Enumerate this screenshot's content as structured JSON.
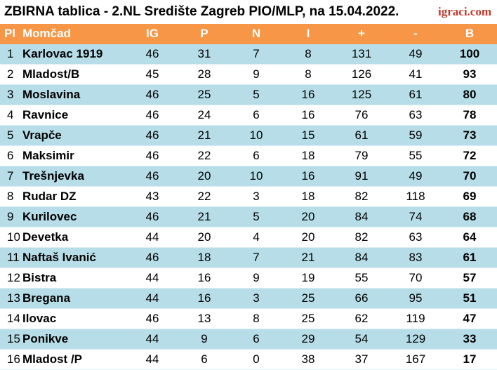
{
  "header": {
    "title": "ZBIRNA tablica - 2.NL Središte Zagreb PIO/MLP, na 15.04.2022.",
    "logo": "igraci.com"
  },
  "table": {
    "columns": [
      "Pl",
      "Momčad",
      "IG",
      "P",
      "N",
      "I",
      "+",
      "-",
      "B"
    ],
    "rows": [
      {
        "pl": "1",
        "team": "Karlovac 1919",
        "ig": "46",
        "p": "31",
        "n": "7",
        "i": "8",
        "plus": "131",
        "minus": "49",
        "b": "100"
      },
      {
        "pl": "2",
        "team": "Mladost/B",
        "ig": "45",
        "p": "28",
        "n": "9",
        "i": "8",
        "plus": "126",
        "minus": "41",
        "b": "93"
      },
      {
        "pl": "3",
        "team": "Moslavina",
        "ig": "46",
        "p": "25",
        "n": "5",
        "i": "16",
        "plus": "125",
        "minus": "61",
        "b": "80"
      },
      {
        "pl": "4",
        "team": "Ravnice",
        "ig": "46",
        "p": "24",
        "n": "6",
        "i": "16",
        "plus": "76",
        "minus": "63",
        "b": "78"
      },
      {
        "pl": "5",
        "team": "Vrapče",
        "ig": "46",
        "p": "21",
        "n": "10",
        "i": "15",
        "plus": "61",
        "minus": "59",
        "b": "73"
      },
      {
        "pl": "6",
        "team": "Maksimir",
        "ig": "46",
        "p": "22",
        "n": "6",
        "i": "18",
        "plus": "79",
        "minus": "55",
        "b": "72"
      },
      {
        "pl": "7",
        "team": "Trešnjevka",
        "ig": "46",
        "p": "20",
        "n": "10",
        "i": "16",
        "plus": "91",
        "minus": "49",
        "b": "70"
      },
      {
        "pl": "8",
        "team": "Rudar DZ",
        "ig": "43",
        "p": "22",
        "n": "3",
        "i": "18",
        "plus": "82",
        "minus": "118",
        "b": "69"
      },
      {
        "pl": "9",
        "team": "Kurilovec",
        "ig": "46",
        "p": "21",
        "n": "5",
        "i": "20",
        "plus": "84",
        "minus": "74",
        "b": "68"
      },
      {
        "pl": "10",
        "team": "Devetka",
        "ig": "44",
        "p": "20",
        "n": "4",
        "i": "20",
        "plus": "82",
        "minus": "63",
        "b": "64"
      },
      {
        "pl": "11",
        "team": "Naftaš Ivanić",
        "ig": "46",
        "p": "18",
        "n": "7",
        "i": "21",
        "plus": "84",
        "minus": "83",
        "b": "61"
      },
      {
        "pl": "12",
        "team": "Bistra",
        "ig": "44",
        "p": "16",
        "n": "9",
        "i": "19",
        "plus": "55",
        "minus": "70",
        "b": "57"
      },
      {
        "pl": "13",
        "team": "Bregana",
        "ig": "44",
        "p": "16",
        "n": "3",
        "i": "25",
        "plus": "66",
        "minus": "95",
        "b": "51"
      },
      {
        "pl": "14",
        "team": "Ilovac",
        "ig": "46",
        "p": "13",
        "n": "8",
        "i": "25",
        "plus": "62",
        "minus": "119",
        "b": "47"
      },
      {
        "pl": "15",
        "team": "Ponikve",
        "ig": "44",
        "p": "9",
        "n": "6",
        "i": "29",
        "plus": "54",
        "minus": "129",
        "b": "33"
      },
      {
        "pl": "16",
        "team": "Mladost /P",
        "ig": "44",
        "p": "6",
        "n": "0",
        "i": "38",
        "plus": "37",
        "minus": "167",
        "b": "17"
      }
    ]
  },
  "colors": {
    "header_bg": "#f79646",
    "header_text": "#ffffff",
    "row_odd": "#b7dee8",
    "row_even": "#ffffff",
    "logo": "#c0392b"
  }
}
